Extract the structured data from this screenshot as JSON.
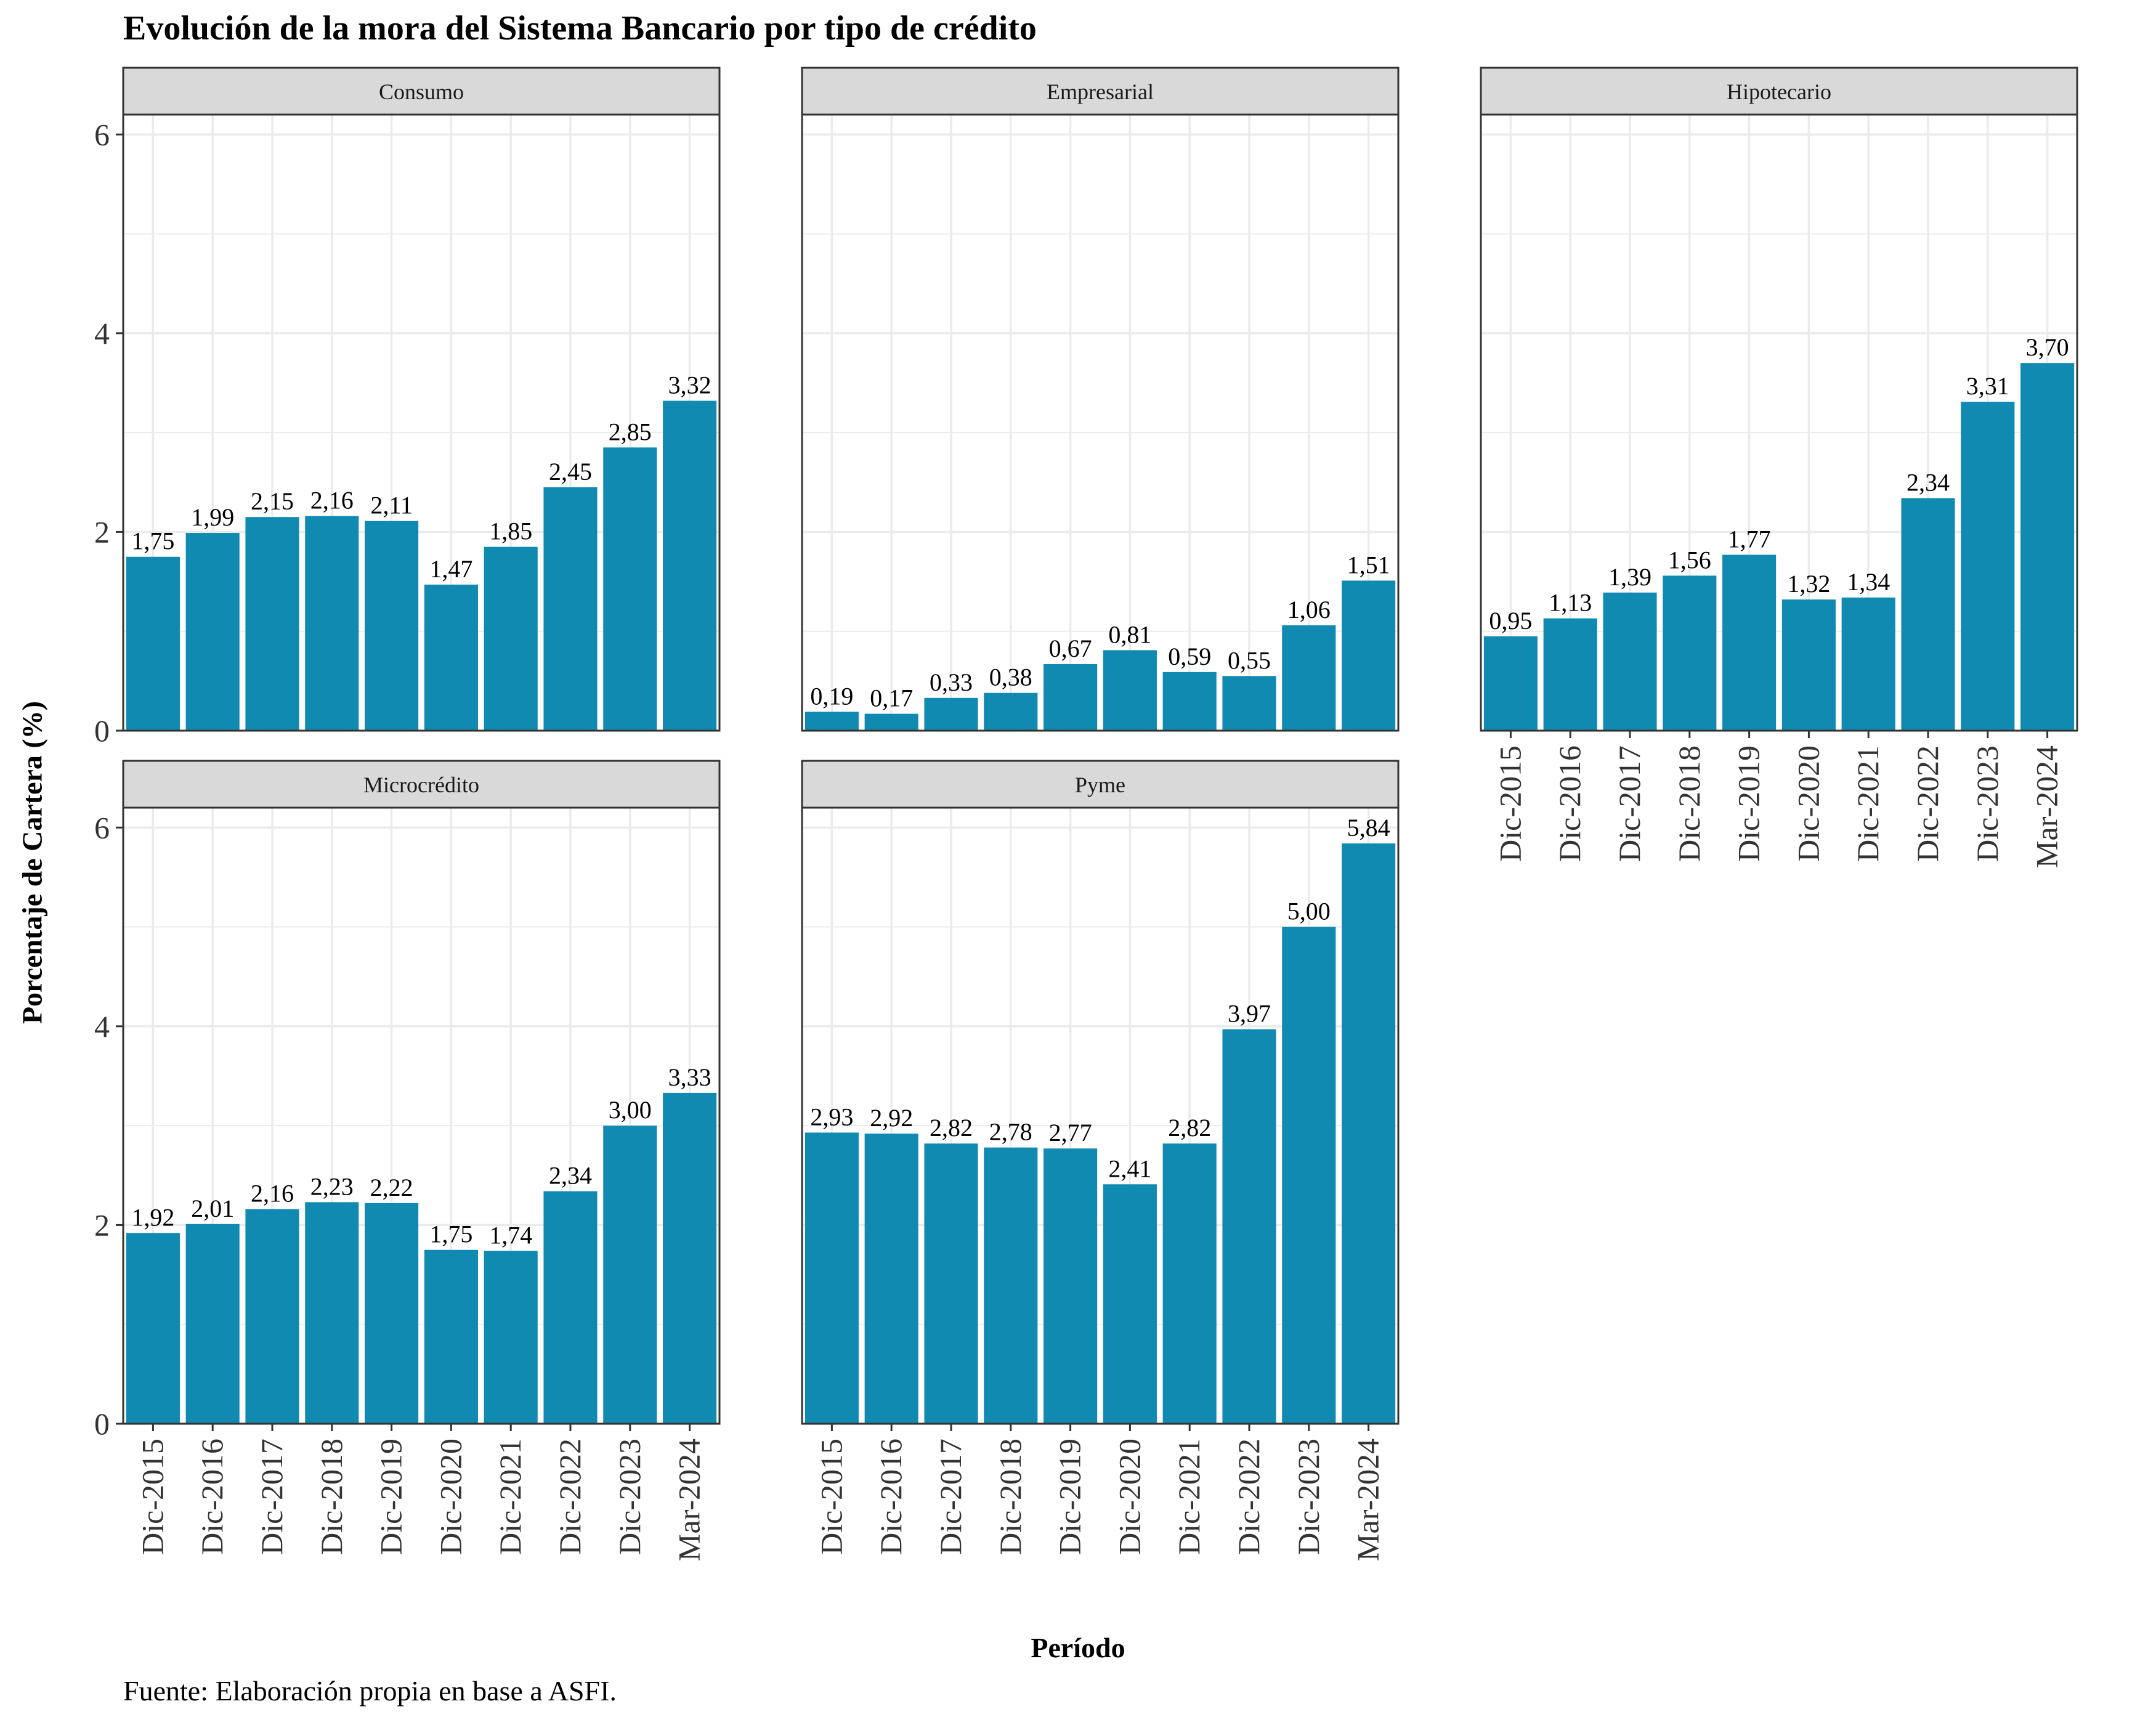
{
  "chart": {
    "title": "Evolución de la mora del Sistema Bancario por tipo de crédito",
    "xlabel": "Período",
    "ylabel": "Porcentaje de Cartera (%)",
    "caption": "Fuente: Elaboración propia en base a ASFI."
  },
  "colors": {
    "bar": "#118AB2",
    "strip": "#D9D9D9",
    "grid": "#EBEBEB",
    "border": "#333333"
  },
  "chart_data": {
    "type": "bar",
    "layout": "faceted",
    "categories": [
      "Dic-2015",
      "Dic-2016",
      "Dic-2017",
      "Dic-2018",
      "Dic-2019",
      "Dic-2020",
      "Dic-2021",
      "Dic-2022",
      "Dic-2023",
      "Mar-2024"
    ],
    "ylim": [
      0,
      6.2
    ],
    "yticks": [
      0,
      2,
      4,
      6
    ],
    "grid": true,
    "legend": "none",
    "facets": [
      {
        "name": "Consumo",
        "values": [
          1.75,
          1.99,
          2.15,
          2.16,
          2.11,
          1.47,
          1.85,
          2.45,
          2.85,
          3.32
        ],
        "labels": [
          "1,75",
          "1,99",
          "2,15",
          "2,16",
          "2,11",
          "1,47",
          "1,85",
          "2,45",
          "2,85",
          "3,32"
        ]
      },
      {
        "name": "Empresarial",
        "values": [
          0.19,
          0.17,
          0.33,
          0.38,
          0.67,
          0.81,
          0.59,
          0.55,
          1.06,
          1.51
        ],
        "labels": [
          "0,19",
          "0,17",
          "0,33",
          "0,38",
          "0,67",
          "0,81",
          "0,59",
          "0,55",
          "1,06",
          "1,51"
        ]
      },
      {
        "name": "Hipotecario",
        "values": [
          0.95,
          1.13,
          1.39,
          1.56,
          1.77,
          1.32,
          1.34,
          2.34,
          3.31,
          3.7
        ],
        "labels": [
          "0,95",
          "1,13",
          "1,39",
          "1,56",
          "1,77",
          "1,32",
          "1,34",
          "2,34",
          "3,31",
          "3,70"
        ]
      },
      {
        "name": "Microcrédito",
        "values": [
          1.92,
          2.01,
          2.16,
          2.23,
          2.22,
          1.75,
          1.74,
          2.34,
          3.0,
          3.33
        ],
        "labels": [
          "1,92",
          "2,01",
          "2,16",
          "2,23",
          "2,22",
          "1,75",
          "1,74",
          "2,34",
          "3,00",
          "3,33"
        ]
      },
      {
        "name": "Pyme",
        "values": [
          2.93,
          2.92,
          2.82,
          2.78,
          2.77,
          2.41,
          2.82,
          3.97,
          5.0,
          5.84
        ],
        "labels": [
          "2,93",
          "2,92",
          "2,82",
          "2,78",
          "2,77",
          "2,41",
          "2,82",
          "3,97",
          "5,00",
          "5,84"
        ]
      }
    ]
  }
}
